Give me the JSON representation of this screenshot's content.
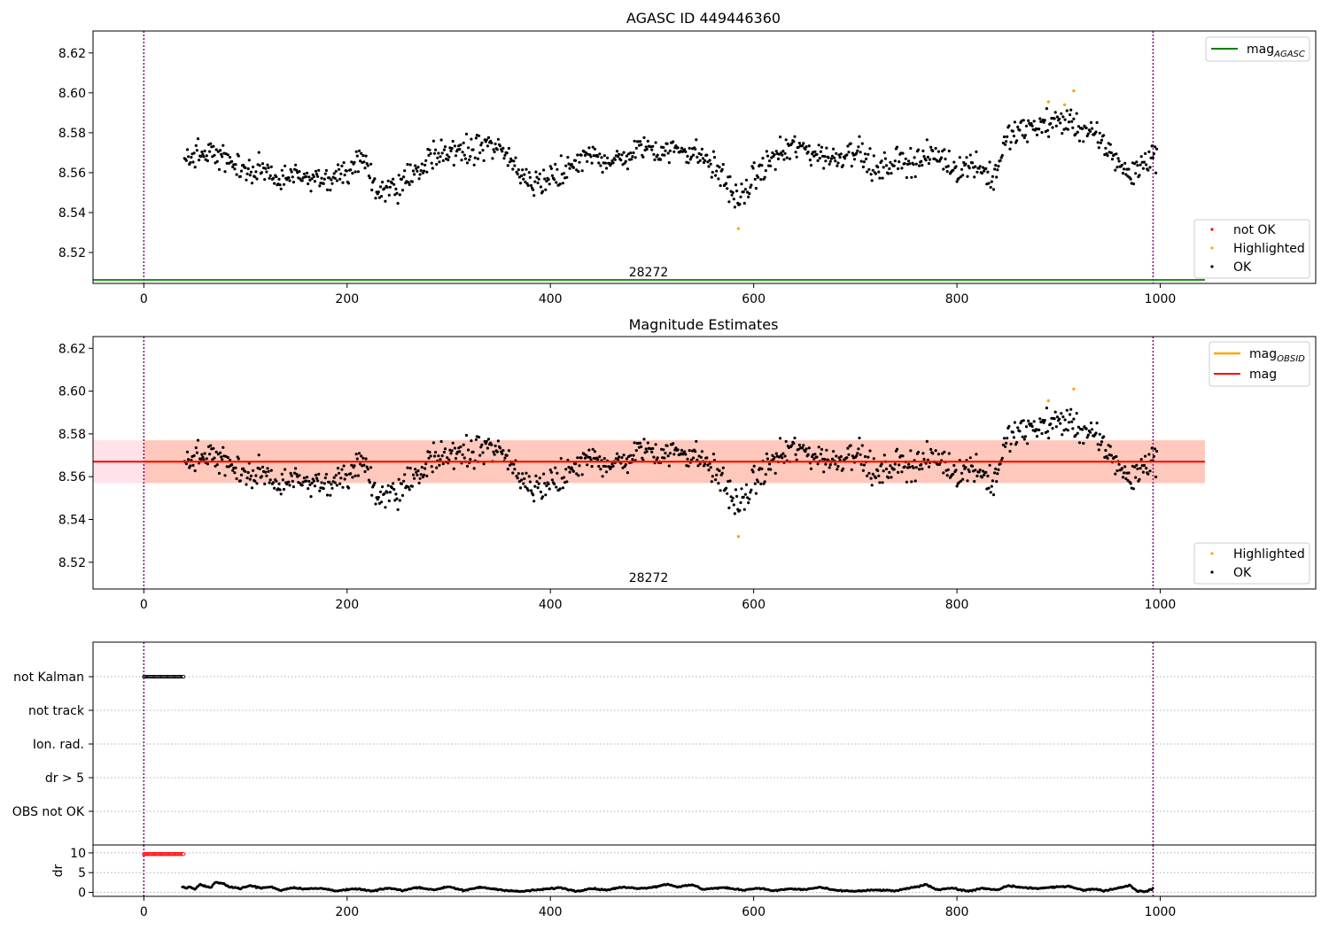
{
  "figure": {
    "background": "#ffffff",
    "colors": {
      "ok": "#000000",
      "highlighted": "#ffa500",
      "not_ok": "#ff0000",
      "mag_agasc": "#008000",
      "mag_obsid": "#ffa500",
      "mag": "#ff0000",
      "boundary": "#800080",
      "band_mag": "#ffc0cb",
      "band_obsid": "#ffa07a"
    }
  },
  "chart_data": [
    {
      "id": "agasc",
      "type": "scatter",
      "title": "AGASC ID 449446360",
      "xlabel": "",
      "ylabel": "",
      "xlim": [
        -50,
        1153
      ],
      "ylim": [
        8.5045,
        8.631
      ],
      "xticks": [
        0,
        200,
        400,
        600,
        800,
        1000
      ],
      "yticks": [
        8.52,
        8.54,
        8.56,
        8.58,
        8.6,
        8.62
      ],
      "ytick_labels": [
        "8.52",
        "8.54",
        "8.56",
        "8.58",
        "8.60",
        "8.62"
      ],
      "grid": false,
      "vlines": [
        0,
        993
      ],
      "hline": {
        "name": "mag_AGASC",
        "y": 8.5045,
        "x_start": -50,
        "x_end": 1044
      },
      "annotation": {
        "text": "28272",
        "x": 497
      },
      "legend_top": {
        "placement": "upper right",
        "entries": [
          {
            "label": "mag",
            "sub": "AGASC",
            "kind": "line",
            "color_key": "mag_agasc"
          }
        ]
      },
      "legend_bottom": {
        "placement": "lower right",
        "entries": [
          {
            "label": "not OK",
            "kind": "dot",
            "color_key": "not_ok"
          },
          {
            "label": "Highlighted",
            "kind": "dot",
            "color_key": "highlighted"
          },
          {
            "label": "OK",
            "kind": "dot",
            "color_key": "ok"
          }
        ]
      },
      "highlighted_points": [
        [
          585,
          8.532
        ],
        [
          890,
          8.5955
        ],
        [
          906,
          8.594
        ],
        [
          915,
          8.601
        ]
      ]
    },
    {
      "id": "estimates",
      "type": "scatter",
      "title": "Magnitude Estimates",
      "xlabel": "",
      "ylabel": "",
      "xlim": [
        -50,
        1153
      ],
      "ylim": [
        8.5075,
        8.6255
      ],
      "xticks": [
        0,
        200,
        400,
        600,
        800,
        1000
      ],
      "yticks": [
        8.52,
        8.54,
        8.56,
        8.58,
        8.6,
        8.62
      ],
      "ytick_labels": [
        "8.52",
        "8.54",
        "8.56",
        "8.58",
        "8.60",
        "8.62"
      ],
      "grid": false,
      "vlines": [
        0,
        993
      ],
      "mag": 8.567,
      "mag_band": [
        8.557,
        8.577
      ],
      "mag_obsid": 8.567,
      "mag_obsid_band": [
        8.557,
        8.577
      ],
      "band_x_range": [
        -50,
        1044
      ],
      "annotation": {
        "text": "28272",
        "x": 497
      },
      "legend_top": {
        "placement": "upper right",
        "entries": [
          {
            "label": "mag",
            "sub": "OBSID",
            "kind": "line",
            "color_key": "mag_obsid"
          },
          {
            "label": "mag",
            "sub": "",
            "kind": "line",
            "color_key": "mag"
          }
        ]
      },
      "legend_bottom": {
        "placement": "lower right",
        "entries": [
          {
            "label": "Highlighted",
            "kind": "dot",
            "color_key": "highlighted"
          },
          {
            "label": "OK",
            "kind": "dot",
            "color_key": "ok"
          }
        ]
      },
      "highlighted_points": [
        [
          585,
          8.532
        ],
        [
          890,
          8.5955
        ],
        [
          915,
          8.601
        ]
      ]
    },
    {
      "id": "flags",
      "type": "scatter",
      "xlim": [
        -50,
        1153
      ],
      "categories": [
        "not Kalman",
        "not track",
        "Ion. rad.",
        "dr > 5",
        "OBS not OK"
      ],
      "grid": true,
      "vlines": [
        0,
        993
      ],
      "not_kalman_x": [
        0,
        39
      ]
    },
    {
      "id": "dr",
      "type": "line",
      "ylabel": "dr",
      "xlim": [
        -50,
        1153
      ],
      "ylim": [
        -1,
        12
      ],
      "xticks": [
        0,
        200,
        400,
        600,
        800,
        1000
      ],
      "yticks": [
        0,
        5,
        10
      ],
      "ytick_labels": [
        "0",
        "5",
        "10"
      ],
      "grid": true,
      "vlines": [
        0,
        993
      ],
      "flagged_x": [
        0,
        39
      ],
      "flagged_y": 9.7,
      "dr_series": [
        [
          38,
          1.5
        ],
        [
          42,
          1.0
        ],
        [
          46,
          1.4
        ],
        [
          50,
          0.8
        ],
        [
          55,
          2.0
        ],
        [
          60,
          1.6
        ],
        [
          66,
          1.2
        ],
        [
          70,
          2.5
        ],
        [
          78,
          2.2
        ],
        [
          85,
          1.4
        ],
        [
          95,
          1.0
        ],
        [
          105,
          1.7
        ],
        [
          115,
          1.1
        ],
        [
          125,
          1.4
        ],
        [
          135,
          0.5
        ],
        [
          145,
          1.2
        ],
        [
          160,
          0.9
        ],
        [
          175,
          1.0
        ],
        [
          190,
          0.4
        ],
        [
          210,
          0.9
        ],
        [
          225,
          0.3
        ],
        [
          240,
          1.1
        ],
        [
          255,
          0.5
        ],
        [
          270,
          1.3
        ],
        [
          285,
          0.6
        ],
        [
          300,
          1.5
        ],
        [
          315,
          0.4
        ],
        [
          330,
          1.3
        ],
        [
          350,
          0.7
        ],
        [
          370,
          0.2
        ],
        [
          390,
          0.7
        ],
        [
          410,
          1.2
        ],
        [
          425,
          0.3
        ],
        [
          440,
          1.0
        ],
        [
          455,
          0.6
        ],
        [
          470,
          1.3
        ],
        [
          490,
          1.0
        ],
        [
          505,
          1.5
        ],
        [
          515,
          2.1
        ],
        [
          525,
          1.4
        ],
        [
          540,
          1.9
        ],
        [
          550,
          0.8
        ],
        [
          570,
          1.2
        ],
        [
          590,
          0.6
        ],
        [
          605,
          1.1
        ],
        [
          620,
          0.4
        ],
        [
          635,
          0.9
        ],
        [
          650,
          0.7
        ],
        [
          665,
          1.3
        ],
        [
          680,
          0.5
        ],
        [
          700,
          0.3
        ],
        [
          720,
          0.6
        ],
        [
          740,
          0.4
        ],
        [
          760,
          1.4
        ],
        [
          770,
          2.0
        ],
        [
          780,
          0.7
        ],
        [
          795,
          1.1
        ],
        [
          810,
          0.3
        ],
        [
          825,
          1.0
        ],
        [
          840,
          0.6
        ],
        [
          850,
          1.7
        ],
        [
          865,
          1.2
        ],
        [
          880,
          1.0
        ],
        [
          895,
          1.3
        ],
        [
          910,
          1.6
        ],
        [
          925,
          0.5
        ],
        [
          935,
          0.9
        ],
        [
          945,
          0.4
        ],
        [
          960,
          1.2
        ],
        [
          970,
          1.8
        ],
        [
          978,
          0.3
        ],
        [
          985,
          0.2
        ],
        [
          993,
          0.9
        ]
      ]
    }
  ],
  "series": {
    "ok_x_range": [
      40,
      997
    ],
    "mag_profile": [
      [
        40,
        8.567
      ],
      [
        60,
        8.57
      ],
      [
        80,
        8.567
      ],
      [
        100,
        8.562
      ],
      [
        130,
        8.559
      ],
      [
        160,
        8.557
      ],
      [
        200,
        8.559
      ],
      [
        215,
        8.566
      ],
      [
        230,
        8.551
      ],
      [
        260,
        8.556
      ],
      [
        280,
        8.567
      ],
      [
        300,
        8.57
      ],
      [
        320,
        8.572
      ],
      [
        340,
        8.574
      ],
      [
        360,
        8.566
      ],
      [
        375,
        8.556
      ],
      [
        390,
        8.555
      ],
      [
        410,
        8.561
      ],
      [
        440,
        8.568
      ],
      [
        470,
        8.566
      ],
      [
        490,
        8.573
      ],
      [
        510,
        8.571
      ],
      [
        530,
        8.572
      ],
      [
        550,
        8.568
      ],
      [
        570,
        8.558
      ],
      [
        585,
        8.545
      ],
      [
        600,
        8.557
      ],
      [
        620,
        8.568
      ],
      [
        640,
        8.573
      ],
      [
        660,
        8.57
      ],
      [
        680,
        8.567
      ],
      [
        700,
        8.573
      ],
      [
        720,
        8.56
      ],
      [
        740,
        8.566
      ],
      [
        760,
        8.566
      ],
      [
        780,
        8.569
      ],
      [
        800,
        8.562
      ],
      [
        820,
        8.565
      ],
      [
        835,
        8.556
      ],
      [
        850,
        8.578
      ],
      [
        870,
        8.582
      ],
      [
        890,
        8.585
      ],
      [
        910,
        8.586
      ],
      [
        930,
        8.58
      ],
      [
        945,
        8.574
      ],
      [
        960,
        8.565
      ],
      [
        970,
        8.558
      ],
      [
        985,
        8.566
      ],
      [
        997,
        8.569
      ]
    ]
  }
}
